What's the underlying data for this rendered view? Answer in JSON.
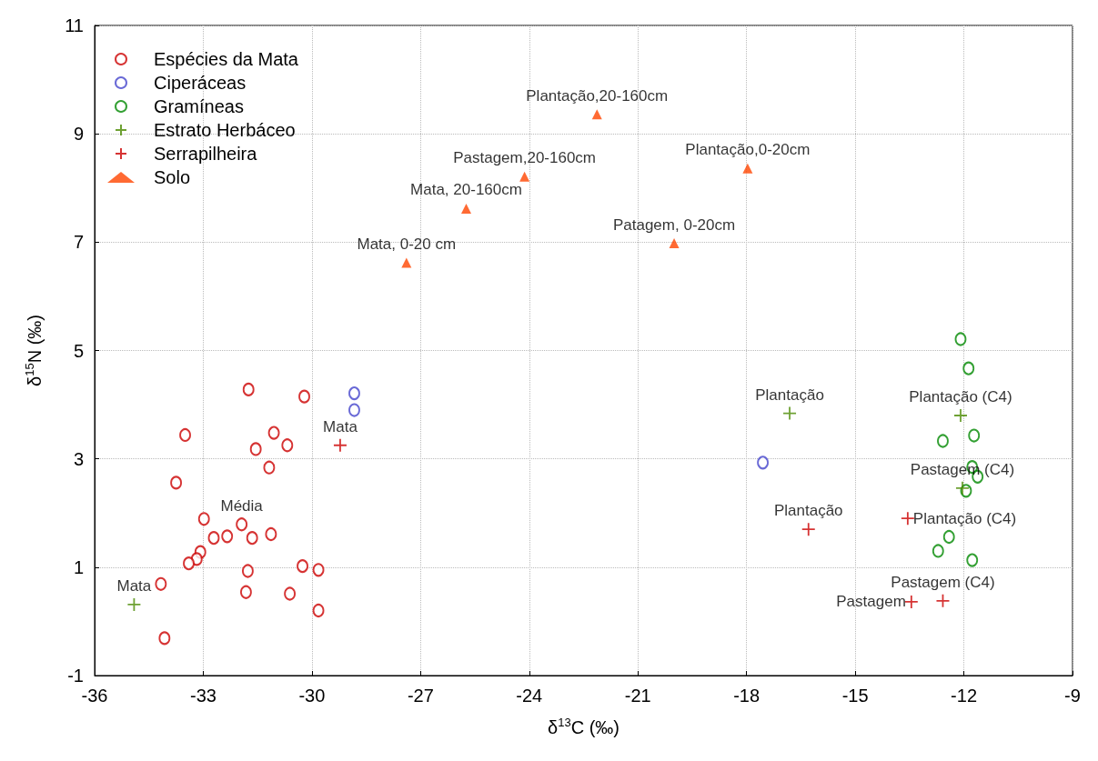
{
  "chart_data": {
    "type": "scatter",
    "xlabel": "δ$^{13}$C (‰)",
    "ylabel": "δ$^{15}$N (‰)",
    "xlim": [
      -36,
      -9
    ],
    "xticks": [
      -36,
      -33,
      -30,
      -27,
      -24,
      -21,
      -18,
      -15,
      -12,
      -9
    ],
    "ylim": [
      -1,
      11
    ],
    "yticks": [
      -1,
      1,
      3,
      5,
      7,
      9,
      11
    ],
    "grid": true,
    "legend": "top left",
    "series": [
      {
        "name": "Espécies da Mata",
        "color": "#cc0000",
        "marker": "circle",
        "x": [
          -31.75,
          -30.21,
          -33.5,
          -31.05,
          -31.55,
          -30.68,
          -33.75,
          -31.18,
          -32.98,
          -31.94,
          -32.71,
          -32.34,
          -31.65,
          -31.13,
          -33.08,
          -33.18,
          -33.4,
          -31.77,
          -30.26,
          -29.82,
          -31.82,
          -30.61,
          -34.17,
          -29.82,
          -34.07
        ],
        "values": [
          4.28,
          4.15,
          3.44,
          3.48,
          3.18,
          3.25,
          2.56,
          2.84,
          1.89,
          1.79,
          1.54,
          1.57,
          1.54,
          1.61,
          1.28,
          1.15,
          1.07,
          0.93,
          1.02,
          0.95,
          0.54,
          0.51,
          0.69,
          0.2,
          -0.31
        ]
      },
      {
        "name": "Ciperáceas",
        "color": "#4444cc",
        "marker": "circle",
        "x": [
          -28.83,
          -28.83,
          -17.55
        ],
        "values": [
          4.21,
          3.9,
          2.93
        ]
      },
      {
        "name": "Gramíneas",
        "color": "#008800",
        "marker": "circle",
        "x": [
          -12.09,
          -11.87,
          -11.72,
          -12.58,
          -11.77,
          -11.62,
          -11.94,
          -12.41,
          -12.71,
          -11.77
        ],
        "values": [
          5.21,
          4.67,
          3.43,
          3.33,
          2.85,
          2.67,
          2.41,
          1.56,
          1.3,
          1.13
        ]
      },
      {
        "name": "Estrato Herbáceo",
        "color": "#4a8a00",
        "marker": "cross",
        "x": [
          -34.91,
          -16.81,
          -12.09,
          -12.04
        ],
        "values": [
          0.31,
          3.84,
          3.8,
          2.46
        ]
      },
      {
        "name": "Serrapilheira",
        "color": "#cc0000",
        "marker": "cross",
        "x": [
          -29.22,
          -16.29,
          -13.55,
          -13.45,
          -12.58
        ],
        "values": [
          3.25,
          1.7,
          1.9,
          0.36,
          0.38
        ]
      },
      {
        "name": "Solo",
        "color": "#ff4500",
        "marker": "triangle",
        "x": [
          -27.39,
          -25.74,
          -24.13,
          -22.13,
          -17.97,
          -20.0
        ],
        "values": [
          6.62,
          7.62,
          8.21,
          9.36,
          8.36,
          6.98
        ]
      }
    ],
    "annotations": [
      {
        "text": "Média",
        "x": -31.94,
        "y": 1.79
      },
      {
        "text": "Mata",
        "x": -34.91,
        "y": 0.31
      },
      {
        "text": "Plantação",
        "x": -16.81,
        "y": 3.84
      },
      {
        "text": "Plantação (C4)",
        "x": -12.09,
        "y": 3.8
      },
      {
        "text": "Pastagem (C4)",
        "x": -12.04,
        "y": 2.46
      },
      {
        "text": "Mata",
        "x": -29.22,
        "y": 3.25
      },
      {
        "text": "Plantação",
        "x": -16.29,
        "y": 1.7
      },
      {
        "text": "Plantação (C4)",
        "x": -13.55,
        "y": 1.9
      },
      {
        "text": "Pastagem",
        "x": -13.45,
        "y": 0.36
      },
      {
        "text": "Pastagem (C4)",
        "x": -12.58,
        "y": 0.38
      },
      {
        "text": "Mata, 0-20 cm",
        "x": -27.39,
        "y": 6.62
      },
      {
        "text": "Mata, 20-160cm",
        "x": -25.74,
        "y": 7.62
      },
      {
        "text": "Pastagem,20-160cm",
        "x": -24.13,
        "y": 8.21
      },
      {
        "text": "Plantação,20-160cm",
        "x": -22.13,
        "y": 9.36
      },
      {
        "text": "Plantação,0-20cm",
        "x": -17.97,
        "y": 8.36
      },
      {
        "text": "Patagem, 0-20cm",
        "x": -20.0,
        "y": 6.98
      }
    ]
  }
}
